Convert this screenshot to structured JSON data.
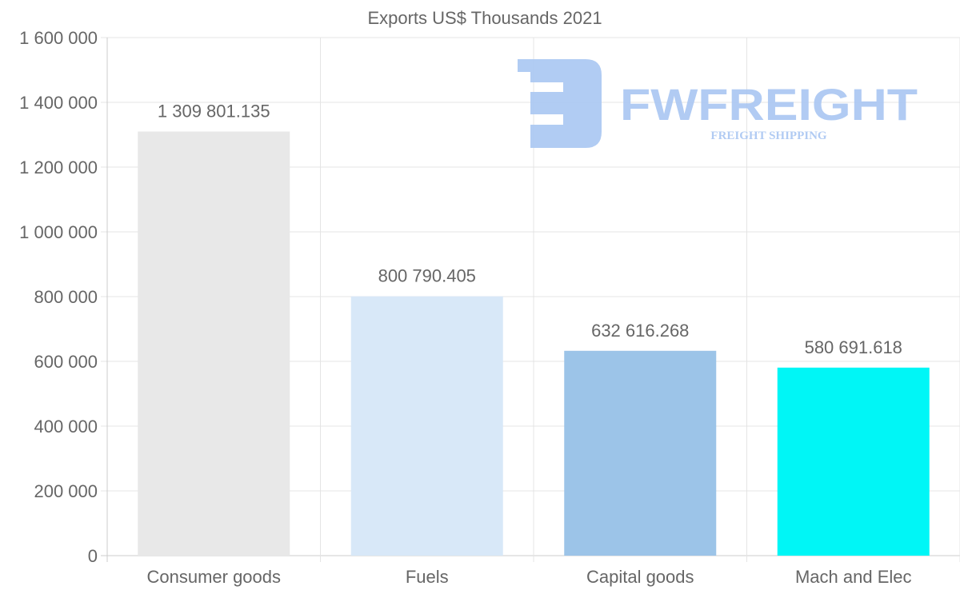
{
  "chart_data": {
    "type": "bar",
    "title": "Exports US$ Thousands 2021",
    "categories": [
      "Consumer goods",
      "Fuels",
      "Capital goods",
      "Mach and Elec"
    ],
    "values": [
      1309801.135,
      800790.405,
      632616.268,
      580691.618
    ],
    "value_labels": [
      "1 309 801.135",
      "800 790.405",
      "632 616.268",
      "580 691.618"
    ],
    "colors": [
      "#e8e8e8",
      "#d8e8f8",
      "#9cc4e8",
      "#00f6f6"
    ],
    "ylim": [
      0,
      1600000
    ],
    "yticks": [
      0,
      200000,
      400000,
      600000,
      800000,
      1000000,
      1200000,
      1400000,
      1600000
    ],
    "ytick_labels": [
      "0",
      "200 000",
      "400 000",
      "600 000",
      "800 000",
      "1 000 000",
      "1 200 000",
      "1 400 000",
      "1 600 000"
    ],
    "xlabel": "",
    "ylabel": "",
    "grid": true,
    "legend": "none"
  },
  "watermark": {
    "brand": "FWFREIGHT",
    "tagline": "FREIGHT SHIPPING",
    "color": "#a9c6f2"
  }
}
